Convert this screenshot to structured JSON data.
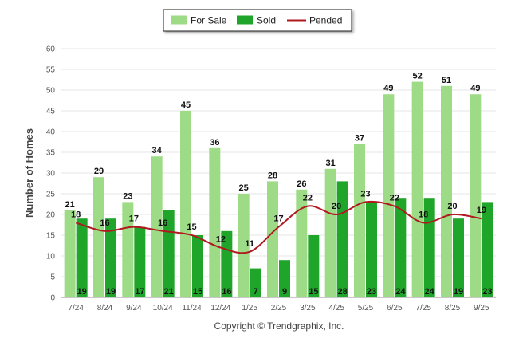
{
  "chart_data": {
    "type": "bar",
    "categories": [
      "7/24",
      "8/24",
      "9/24",
      "10/24",
      "11/24",
      "12/24",
      "1/25",
      "2/25",
      "3/25",
      "4/25",
      "5/25",
      "6/25",
      "7/25",
      "8/25",
      "9/25"
    ],
    "series": [
      {
        "name": "For Sale",
        "type": "bar",
        "color": "#9edb86",
        "values": [
          21,
          29,
          23,
          34,
          45,
          36,
          25,
          28,
          26,
          31,
          37,
          49,
          52,
          51,
          49
        ]
      },
      {
        "name": "Sold",
        "type": "bar",
        "color": "#1fa52a",
        "values": [
          19,
          19,
          17,
          21,
          15,
          16,
          7,
          9,
          15,
          28,
          23,
          24,
          24,
          19,
          23
        ]
      },
      {
        "name": "Pended",
        "type": "line",
        "color": "#b0191f",
        "values": [
          18,
          16,
          17,
          16,
          15,
          12,
          11,
          17,
          22,
          20,
          23,
          22,
          18,
          20,
          19
        ]
      }
    ],
    "ylabel": "Number of Homes",
    "xlabel": "",
    "ylim": [
      0,
      60
    ],
    "yticks": [
      0,
      5,
      10,
      15,
      20,
      25,
      30,
      35,
      40,
      45,
      50,
      55,
      60
    ],
    "legend_position": "top-center",
    "grid": true
  },
  "footer": {
    "copyright": "Copyright © Trendgraphix, Inc."
  }
}
